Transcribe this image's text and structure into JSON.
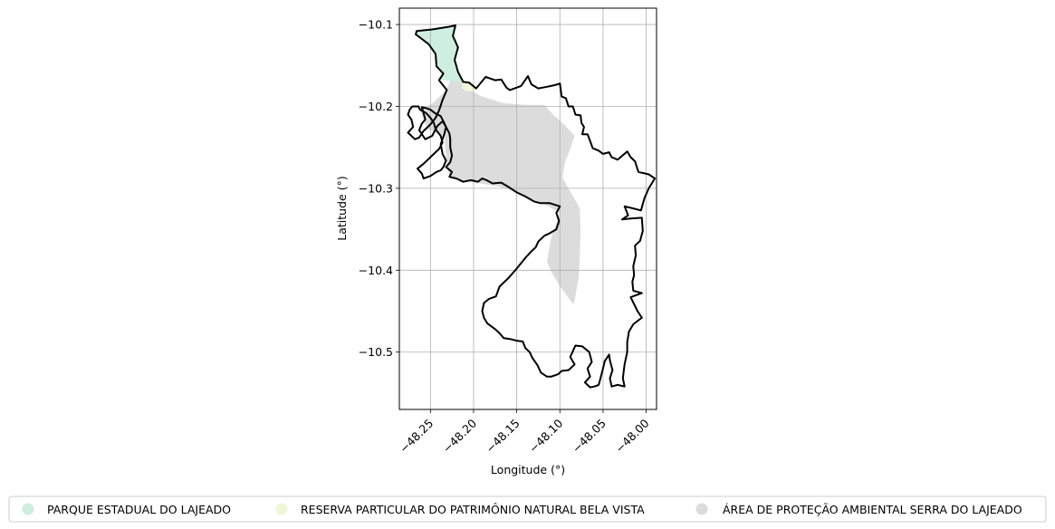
{
  "chart_data": {
    "type": "map",
    "xlabel": "Longitude (°)",
    "ylabel": "Latitude (°)",
    "xlim": [
      -48.286,
      -47.988
    ],
    "ylim": [
      -10.57,
      -10.08
    ],
    "x_ticks": [
      {
        "value": -48.25,
        "label": "−48.25"
      },
      {
        "value": -48.2,
        "label": "−48.20"
      },
      {
        "value": -48.15,
        "label": "−48.15"
      },
      {
        "value": -48.1,
        "label": "−48.10"
      },
      {
        "value": -48.05,
        "label": "−48.05"
      },
      {
        "value": -48.0,
        "label": "−48.00"
      }
    ],
    "y_ticks": [
      {
        "value": -10.1,
        "label": "−10.1"
      },
      {
        "value": -10.2,
        "label": "−10.2"
      },
      {
        "value": -10.3,
        "label": "−10.3"
      },
      {
        "value": -10.4,
        "label": "−10.4"
      },
      {
        "value": -10.5,
        "label": "−10.5"
      }
    ],
    "grid": true,
    "legend_position": "bottom",
    "legend": [
      {
        "label": "PARQUE ESTADUAL DO LAJEADO",
        "color": "#cdeee0"
      },
      {
        "label": "RESERVA PARTICULAR DO PATRIMÔNIO NATURAL BELA VISTA",
        "color": "#eef7d6"
      },
      {
        "label": "ÁREA DE PROTEÇÃO AMBIENTAL SERRA DO LAJEADO",
        "color": "#dcdcdc"
      }
    ],
    "areas": [
      {
        "name": "ÁREA DE PROTEÇÃO AMBIENTAL SERRA DO LAJEADO",
        "color": "#dcdcdc",
        "coords": [
          [
            -48.227,
            -10.169
          ],
          [
            -48.212,
            -10.17
          ],
          [
            -48.205,
            -10.18
          ],
          [
            -48.19,
            -10.188
          ],
          [
            -48.165,
            -10.196
          ],
          [
            -48.14,
            -10.198
          ],
          [
            -48.118,
            -10.198
          ],
          [
            -48.108,
            -10.21
          ],
          [
            -48.095,
            -10.222
          ],
          [
            -48.083,
            -10.236
          ],
          [
            -48.088,
            -10.252
          ],
          [
            -48.094,
            -10.268
          ],
          [
            -48.097,
            -10.287
          ],
          [
            -48.087,
            -10.306
          ],
          [
            -48.077,
            -10.324
          ],
          [
            -48.076,
            -10.35
          ],
          [
            -48.077,
            -10.384
          ],
          [
            -48.078,
            -10.408
          ],
          [
            -48.084,
            -10.442
          ],
          [
            -48.097,
            -10.424
          ],
          [
            -48.109,
            -10.404
          ],
          [
            -48.115,
            -10.39
          ],
          [
            -48.11,
            -10.36
          ],
          [
            -48.1,
            -10.33
          ],
          [
            -48.12,
            -10.318
          ],
          [
            -48.135,
            -10.312
          ],
          [
            -48.15,
            -10.305
          ],
          [
            -48.17,
            -10.298
          ],
          [
            -48.192,
            -10.294
          ],
          [
            -48.215,
            -10.29
          ],
          [
            -48.228,
            -10.288
          ],
          [
            -48.232,
            -10.262
          ],
          [
            -48.234,
            -10.236
          ],
          [
            -48.253,
            -10.228
          ],
          [
            -48.262,
            -10.206
          ],
          [
            -48.246,
            -10.195
          ],
          [
            -48.232,
            -10.18
          ]
        ]
      },
      {
        "name": "RESERVA PARTICULAR DO PATRIMÔNIO NATURAL BELA VISTA",
        "color": "#eef7d6",
        "coords": [
          [
            -48.213,
            -10.171
          ],
          [
            -48.204,
            -10.172
          ],
          [
            -48.198,
            -10.18
          ],
          [
            -48.207,
            -10.182
          ],
          [
            -48.214,
            -10.178
          ]
        ]
      },
      {
        "name": "PARQUE ESTADUAL DO LAJEADO",
        "color": "#cdeee0",
        "coords": [
          [
            -48.266,
            -10.109
          ],
          [
            -48.248,
            -10.106
          ],
          [
            -48.23,
            -10.103
          ],
          [
            -48.221,
            -10.102
          ],
          [
            -48.224,
            -10.115
          ],
          [
            -48.218,
            -10.128
          ],
          [
            -48.222,
            -10.143
          ],
          [
            -48.218,
            -10.158
          ],
          [
            -48.212,
            -10.17
          ],
          [
            -48.227,
            -10.169
          ],
          [
            -48.24,
            -10.167
          ],
          [
            -48.235,
            -10.16
          ],
          [
            -48.243,
            -10.151
          ],
          [
            -48.244,
            -10.136
          ],
          [
            -48.252,
            -10.124
          ],
          [
            -48.262,
            -10.116
          ]
        ]
      }
    ],
    "boundary": {
      "name": "municipality-boundary",
      "color": "#000000",
      "coords": [
        [
          -48.266,
          -10.108
        ],
        [
          -48.248,
          -10.106
        ],
        [
          -48.23,
          -10.103
        ],
        [
          -48.221,
          -10.101
        ],
        [
          -48.224,
          -10.114
        ],
        [
          -48.218,
          -10.128
        ],
        [
          -48.222,
          -10.143
        ],
        [
          -48.218,
          -10.158
        ],
        [
          -48.212,
          -10.17
        ],
        [
          -48.205,
          -10.171
        ],
        [
          -48.197,
          -10.178
        ],
        [
          -48.186,
          -10.164
        ],
        [
          -48.175,
          -10.168
        ],
        [
          -48.168,
          -10.167
        ],
        [
          -48.162,
          -10.177
        ],
        [
          -48.158,
          -10.18
        ],
        [
          -48.145,
          -10.175
        ],
        [
          -48.137,
          -10.163
        ],
        [
          -48.133,
          -10.173
        ],
        [
          -48.125,
          -10.178
        ],
        [
          -48.115,
          -10.176
        ],
        [
          -48.106,
          -10.174
        ],
        [
          -48.1,
          -10.172
        ],
        [
          -48.098,
          -10.188
        ],
        [
          -48.093,
          -10.19
        ],
        [
          -48.09,
          -10.2
        ],
        [
          -48.085,
          -10.2
        ],
        [
          -48.082,
          -10.21
        ],
        [
          -48.076,
          -10.211
        ],
        [
          -48.075,
          -10.22
        ],
        [
          -48.072,
          -10.225
        ],
        [
          -48.074,
          -10.234
        ],
        [
          -48.068,
          -10.234
        ],
        [
          -48.065,
          -10.242
        ],
        [
          -48.062,
          -10.251
        ],
        [
          -48.055,
          -10.254
        ],
        [
          -48.05,
          -10.258
        ],
        [
          -48.043,
          -10.256
        ],
        [
          -48.04,
          -10.262
        ],
        [
          -48.033,
          -10.265
        ],
        [
          -48.022,
          -10.255
        ],
        [
          -48.018,
          -10.262
        ],
        [
          -48.013,
          -10.267
        ],
        [
          -48.009,
          -10.28
        ],
        [
          -47.997,
          -10.283
        ],
        [
          -47.99,
          -10.288
        ],
        [
          -47.997,
          -10.3
        ],
        [
          -48.002,
          -10.312
        ],
        [
          -48.006,
          -10.327
        ],
        [
          -48.017,
          -10.324
        ],
        [
          -48.025,
          -10.322
        ],
        [
          -48.021,
          -10.333
        ],
        [
          -48.028,
          -10.338
        ],
        [
          -48.018,
          -10.337
        ],
        [
          -48.005,
          -10.336
        ],
        [
          -48.004,
          -10.352
        ],
        [
          -48.007,
          -10.364
        ],
        [
          -48.013,
          -10.37
        ],
        [
          -48.012,
          -10.382
        ],
        [
          -48.015,
          -10.395
        ],
        [
          -48.014,
          -10.406
        ],
        [
          -48.016,
          -10.414
        ],
        [
          -48.015,
          -10.425
        ],
        [
          -48.005,
          -10.428
        ],
        [
          -48.018,
          -10.433
        ],
        [
          -48.01,
          -10.45
        ],
        [
          -48.005,
          -10.458
        ],
        [
          -48.015,
          -10.466
        ],
        [
          -48.02,
          -10.475
        ],
        [
          -48.022,
          -10.488
        ],
        [
          -48.022,
          -10.5
        ],
        [
          -48.025,
          -10.515
        ],
        [
          -48.027,
          -10.532
        ],
        [
          -48.025,
          -10.542
        ],
        [
          -48.033,
          -10.54
        ],
        [
          -48.04,
          -10.542
        ],
        [
          -48.042,
          -10.532
        ],
        [
          -48.039,
          -10.522
        ],
        [
          -48.042,
          -10.51
        ],
        [
          -48.043,
          -10.503
        ],
        [
          -48.048,
          -10.511
        ],
        [
          -48.05,
          -10.52
        ],
        [
          -48.053,
          -10.532
        ],
        [
          -48.055,
          -10.54
        ],
        [
          -48.06,
          -10.542
        ],
        [
          -48.065,
          -10.543
        ],
        [
          -48.071,
          -10.537
        ],
        [
          -48.065,
          -10.53
        ],
        [
          -48.068,
          -10.52
        ],
        [
          -48.063,
          -10.512
        ],
        [
          -48.066,
          -10.5
        ],
        [
          -48.074,
          -10.493
        ],
        [
          -48.082,
          -10.492
        ],
        [
          -48.088,
          -10.506
        ],
        [
          -48.083,
          -10.515
        ],
        [
          -48.09,
          -10.522
        ],
        [
          -48.098,
          -10.523
        ],
        [
          -48.102,
          -10.527
        ],
        [
          -48.11,
          -10.53
        ],
        [
          -48.115,
          -10.53
        ],
        [
          -48.122,
          -10.525
        ],
        [
          -48.126,
          -10.516
        ],
        [
          -48.132,
          -10.507
        ],
        [
          -48.135,
          -10.5
        ],
        [
          -48.14,
          -10.495
        ],
        [
          -48.143,
          -10.487
        ],
        [
          -48.15,
          -10.486
        ],
        [
          -48.158,
          -10.484
        ],
        [
          -48.165,
          -10.483
        ],
        [
          -48.17,
          -10.477
        ],
        [
          -48.175,
          -10.472
        ],
        [
          -48.184,
          -10.465
        ],
        [
          -48.188,
          -10.458
        ],
        [
          -48.19,
          -10.45
        ],
        [
          -48.188,
          -10.44
        ],
        [
          -48.182,
          -10.435
        ],
        [
          -48.174,
          -10.432
        ],
        [
          -48.17,
          -10.42
        ],
        [
          -48.16,
          -10.41
        ],
        [
          -48.15,
          -10.398
        ],
        [
          -48.14,
          -10.385
        ],
        [
          -48.134,
          -10.378
        ],
        [
          -48.128,
          -10.372
        ],
        [
          -48.125,
          -10.365
        ],
        [
          -48.118,
          -10.358
        ],
        [
          -48.112,
          -10.355
        ],
        [
          -48.104,
          -10.35
        ],
        [
          -48.101,
          -10.34
        ],
        [
          -48.104,
          -10.33
        ],
        [
          -48.1,
          -10.322
        ],
        [
          -48.112,
          -10.318
        ],
        [
          -48.123,
          -10.318
        ],
        [
          -48.13,
          -10.316
        ],
        [
          -48.14,
          -10.31
        ],
        [
          -48.15,
          -10.305
        ],
        [
          -48.16,
          -10.298
        ],
        [
          -48.168,
          -10.293
        ],
        [
          -48.178,
          -10.294
        ],
        [
          -48.185,
          -10.29
        ],
        [
          -48.19,
          -10.288
        ],
        [
          -48.195,
          -10.292
        ],
        [
          -48.203,
          -10.29
        ],
        [
          -48.212,
          -10.292
        ],
        [
          -48.22,
          -10.288
        ],
        [
          -48.228,
          -10.286
        ],
        [
          -48.225,
          -10.28
        ],
        [
          -48.232,
          -10.274
        ],
        [
          -48.227,
          -10.268
        ],
        [
          -48.225,
          -10.26
        ],
        [
          -48.227,
          -10.25
        ],
        [
          -48.227,
          -10.24
        ],
        [
          -48.228,
          -10.233
        ],
        [
          -48.232,
          -10.225
        ],
        [
          -48.235,
          -10.218
        ],
        [
          -48.238,
          -10.212
        ],
        [
          -48.245,
          -10.208
        ],
        [
          -48.25,
          -10.204
        ],
        [
          -48.255,
          -10.202
        ],
        [
          -48.26,
          -10.201
        ],
        [
          -48.258,
          -10.208
        ],
        [
          -48.256,
          -10.216
        ],
        [
          -48.26,
          -10.221
        ],
        [
          -48.263,
          -10.229
        ],
        [
          -48.256,
          -10.24
        ],
        [
          -48.248,
          -10.236
        ],
        [
          -48.242,
          -10.224
        ],
        [
          -48.236,
          -10.218
        ],
        [
          -48.232,
          -10.225
        ],
        [
          -48.234,
          -10.234
        ],
        [
          -48.238,
          -10.246
        ],
        [
          -48.236,
          -10.258
        ],
        [
          -48.232,
          -10.266
        ],
        [
          -48.235,
          -10.274
        ],
        [
          -48.238,
          -10.278
        ],
        [
          -48.243,
          -10.28
        ],
        [
          -48.25,
          -10.285
        ],
        [
          -48.258,
          -10.288
        ],
        [
          -48.26,
          -10.282
        ],
        [
          -48.265,
          -10.276
        ],
        [
          -48.258,
          -10.27
        ],
        [
          -48.252,
          -10.264
        ],
        [
          -48.246,
          -10.258
        ],
        [
          -48.24,
          -10.252
        ],
        [
          -48.236,
          -10.244
        ],
        [
          -48.238,
          -10.236
        ],
        [
          -48.244,
          -10.228
        ],
        [
          -48.246,
          -10.22
        ],
        [
          -48.25,
          -10.214
        ],
        [
          -48.255,
          -10.208
        ],
        [
          -48.262,
          -10.204
        ],
        [
          -48.264,
          -10.2
        ],
        [
          -48.271,
          -10.2
        ],
        [
          -48.274,
          -10.204
        ],
        [
          -48.276,
          -10.21
        ],
        [
          -48.272,
          -10.216
        ],
        [
          -48.27,
          -10.225
        ],
        [
          -48.276,
          -10.232
        ],
        [
          -48.268,
          -10.24
        ],
        [
          -48.263,
          -10.238
        ],
        [
          -48.258,
          -10.23
        ],
        [
          -48.25,
          -10.222
        ],
        [
          -48.244,
          -10.214
        ],
        [
          -48.24,
          -10.205
        ],
        [
          -48.236,
          -10.192
        ],
        [
          -48.231,
          -10.18
        ],
        [
          -48.24,
          -10.168
        ],
        [
          -48.235,
          -10.16
        ],
        [
          -48.243,
          -10.151
        ],
        [
          -48.244,
          -10.136
        ],
        [
          -48.252,
          -10.124
        ],
        [
          -48.262,
          -10.116
        ],
        [
          -48.267,
          -10.112
        ]
      ]
    }
  }
}
